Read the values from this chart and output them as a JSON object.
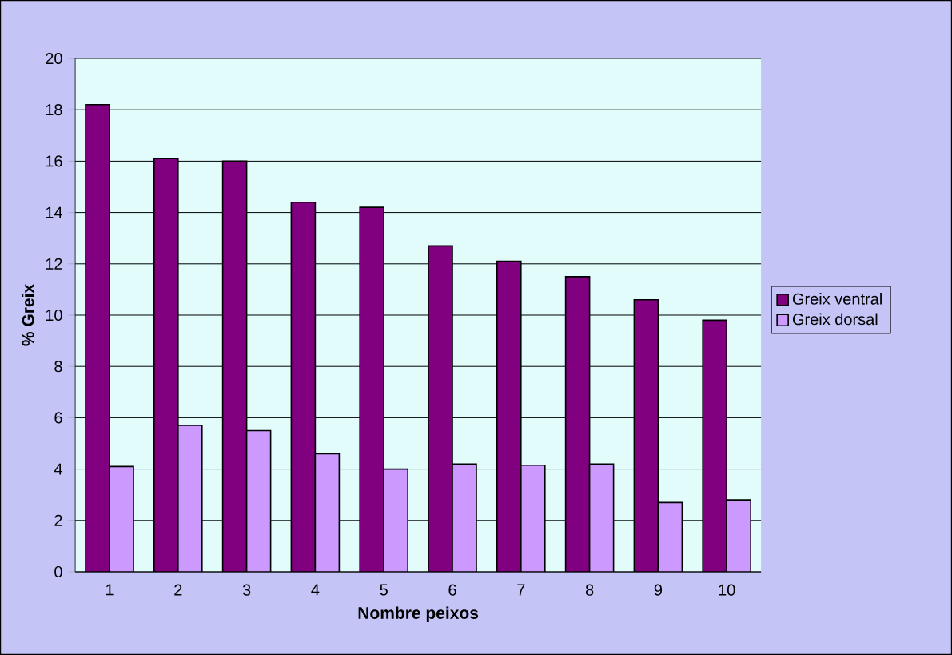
{
  "chart_data": {
    "type": "bar",
    "xlabel": "Nombre peixos",
    "ylabel": "% Greix",
    "categories": [
      "1",
      "2",
      "3",
      "4",
      "5",
      "6",
      "7",
      "8",
      "9",
      "10"
    ],
    "series": [
      {
        "name": "Greix ventral",
        "color": "#800080",
        "values": [
          18.2,
          16.1,
          16.0,
          14.4,
          14.2,
          12.7,
          12.1,
          11.5,
          10.6,
          9.8
        ]
      },
      {
        "name": "Greix dorsal",
        "color": "#cc99ff",
        "values": [
          4.1,
          5.7,
          5.5,
          4.6,
          4.0,
          4.2,
          4.15,
          4.2,
          2.7,
          2.8
        ]
      }
    ],
    "ylim": [
      0,
      20
    ],
    "yticks": [
      0,
      2,
      4,
      6,
      8,
      10,
      12,
      14,
      16,
      18,
      20
    ],
    "grid": "y",
    "legend": "right"
  }
}
